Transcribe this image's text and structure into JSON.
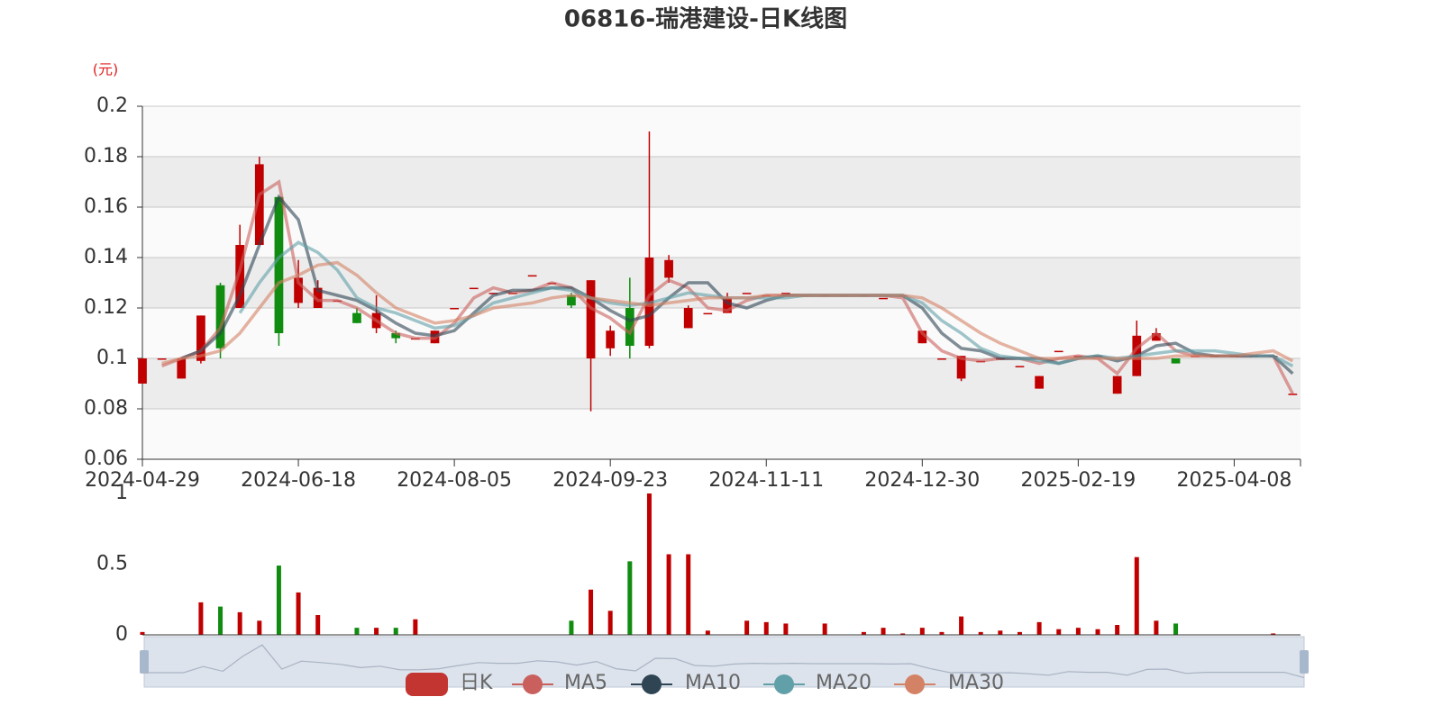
{
  "chart_data": {
    "type": "candlestick",
    "title": "06816-瑞港建设-日K线图",
    "yname": "(元)",
    "categories": [
      "2024-04-29",
      null,
      null,
      null,
      null,
      null,
      null,
      null,
      "2024-06-18",
      null,
      null,
      null,
      null,
      null,
      null,
      null,
      "2024-08-05",
      null,
      null,
      null,
      null,
      null,
      null,
      null,
      "2024-09-23",
      null,
      null,
      null,
      null,
      null,
      null,
      null,
      "2024-11-11",
      null,
      null,
      null,
      null,
      null,
      null,
      null,
      "2024-12-30",
      null,
      null,
      null,
      null,
      null,
      null,
      null,
      "2025-02-19",
      null,
      null,
      null,
      null,
      null,
      null,
      null,
      "2025-04-08",
      null,
      null,
      null
    ],
    "ylim": [
      0.06,
      0.2
    ],
    "yticks": [
      0.06,
      0.08,
      0.1,
      0.12,
      0.14,
      0.16,
      0.18,
      0.2
    ],
    "up_color": "#c00000",
    "down_color": "#108c10",
    "candles": {
      "name": "日K",
      "color": "#c23531",
      "values": [
        [
          0.09,
          0.1,
          0.09,
          0.1
        ],
        [
          0.1,
          0.1,
          0.1,
          0.1
        ],
        [
          0.092,
          0.1,
          0.092,
          0.1
        ],
        [
          0.099,
          0.117,
          0.098,
          0.117
        ],
        [
          0.129,
          0.104,
          0.1,
          0.13
        ],
        [
          0.12,
          0.145,
          0.12,
          0.153
        ],
        [
          0.145,
          0.177,
          0.145,
          0.18
        ],
        [
          0.164,
          0.11,
          0.105,
          0.164
        ],
        [
          0.122,
          0.132,
          0.12,
          0.139
        ],
        [
          0.12,
          0.128,
          0.12,
          0.131
        ],
        [
          0.123,
          0.123,
          0.123,
          0.123
        ],
        [
          0.118,
          0.114,
          0.114,
          0.12
        ],
        [
          0.112,
          0.118,
          0.11,
          0.125
        ],
        [
          0.11,
          0.108,
          0.106,
          0.111
        ],
        [
          0.108,
          0.108,
          0.108,
          0.108
        ],
        [
          0.106,
          0.111,
          0.106,
          0.111
        ],
        [
          0.12,
          0.12,
          0.12,
          0.12
        ],
        [
          0.128,
          0.128,
          0.128,
          0.128
        ],
        [
          0.126,
          0.126,
          0.126,
          0.126
        ],
        [
          0.126,
          0.126,
          0.126,
          0.126
        ],
        [
          0.133,
          0.133,
          0.133,
          0.133
        ],
        [
          0.13,
          0.13,
          0.13,
          0.13
        ],
        [
          0.125,
          0.121,
          0.12,
          0.126
        ],
        [
          0.1,
          0.131,
          0.079,
          0.131
        ],
        [
          0.104,
          0.111,
          0.101,
          0.113
        ],
        [
          0.12,
          0.105,
          0.1,
          0.132
        ],
        [
          0.105,
          0.14,
          0.104,
          0.19
        ],
        [
          0.132,
          0.139,
          0.13,
          0.141
        ],
        [
          0.112,
          0.12,
          0.112,
          0.121
        ],
        [
          0.118,
          0.118,
          0.118,
          0.118
        ],
        [
          0.118,
          0.124,
          0.118,
          0.126
        ],
        [
          0.126,
          0.126,
          0.126,
          0.126
        ],
        [
          0.125,
          0.125,
          0.125,
          0.125
        ],
        [
          0.126,
          0.126,
          0.126,
          0.126
        ],
        [
          0.125,
          0.125,
          0.125,
          0.125
        ],
        [
          0.125,
          0.125,
          0.125,
          0.125
        ],
        [
          0.125,
          0.125,
          0.125,
          0.125
        ],
        [
          0.125,
          0.125,
          0.125,
          0.125
        ],
        [
          0.124,
          0.124,
          0.124,
          0.124
        ],
        [
          0.125,
          0.125,
          0.125,
          0.125
        ],
        [
          0.106,
          0.111,
          0.106,
          0.111
        ],
        [
          0.1,
          0.1,
          0.1,
          0.1
        ],
        [
          0.092,
          0.101,
          0.091,
          0.101
        ],
        [
          0.099,
          0.099,
          0.099,
          0.099
        ],
        [
          0.1,
          0.1,
          0.1,
          0.1
        ],
        [
          0.097,
          0.097,
          0.097,
          0.097
        ],
        [
          0.088,
          0.093,
          0.088,
          0.093
        ],
        [
          0.103,
          0.103,
          0.103,
          0.103
        ],
        [
          0.101,
          0.101,
          0.101,
          0.101
        ],
        [
          0.101,
          0.101,
          0.101,
          0.101
        ],
        [
          0.086,
          0.093,
          0.086,
          0.093
        ],
        [
          0.093,
          0.109,
          0.093,
          0.115
        ],
        [
          0.107,
          0.11,
          0.107,
          0.112
        ],
        [
          0.1,
          0.098,
          0.098,
          0.1
        ],
        [
          0.101,
          0.101,
          0.101,
          0.101
        ],
        [
          0.101,
          0.101,
          0.101,
          0.101
        ],
        [
          0.101,
          0.101,
          0.101,
          0.101
        ],
        [
          0.101,
          0.101,
          0.101,
          0.101
        ],
        [
          0.101,
          0.101,
          0.101,
          0.101
        ],
        [
          0.086,
          0.086,
          0.086,
          0.086
        ]
      ]
    },
    "series": [
      {
        "name": "MA5",
        "color": "#c9605e",
        "values": [
          null,
          0.097,
          0.1,
          0.103,
          0.112,
          0.135,
          0.165,
          0.17,
          0.13,
          0.123,
          0.123,
          0.12,
          0.115,
          0.11,
          0.108,
          0.108,
          0.114,
          0.124,
          0.128,
          0.126,
          0.127,
          0.13,
          0.128,
          0.12,
          0.116,
          0.11,
          0.125,
          0.131,
          0.128,
          0.12,
          0.119,
          0.123,
          0.125,
          0.125,
          0.125,
          0.125,
          0.125,
          0.125,
          0.125,
          0.124,
          0.11,
          0.103,
          0.1,
          0.099,
          0.1,
          0.1,
          0.098,
          0.1,
          0.101,
          0.1,
          0.094,
          0.104,
          0.11,
          0.103,
          0.101,
          0.101,
          0.101,
          0.101,
          0.101,
          0.086
        ]
      },
      {
        "name": "MA10",
        "color": "#2f4554",
        "values": [
          null,
          null,
          0.1,
          0.103,
          0.11,
          0.125,
          0.145,
          0.164,
          0.155,
          0.127,
          0.125,
          0.123,
          0.119,
          0.114,
          0.11,
          0.109,
          0.111,
          0.118,
          0.125,
          0.127,
          0.127,
          0.128,
          0.128,
          0.124,
          0.119,
          0.115,
          0.117,
          0.124,
          0.13,
          0.13,
          0.122,
          0.12,
          0.123,
          0.125,
          0.125,
          0.125,
          0.125,
          0.125,
          0.125,
          0.125,
          0.12,
          0.11,
          0.104,
          0.103,
          0.1,
          0.1,
          0.1,
          0.098,
          0.1,
          0.101,
          0.099,
          0.101,
          0.105,
          0.106,
          0.102,
          0.101,
          0.101,
          0.101,
          0.101,
          0.094
        ]
      },
      {
        "name": "MA20",
        "color": "#61a0a8",
        "values": [
          null,
          null,
          null,
          null,
          null,
          0.118,
          0.13,
          0.14,
          0.146,
          0.142,
          0.135,
          0.124,
          0.12,
          0.118,
          0.115,
          0.112,
          0.113,
          0.117,
          0.122,
          0.124,
          0.126,
          0.128,
          0.127,
          0.124,
          0.122,
          0.121,
          0.122,
          0.124,
          0.126,
          0.125,
          0.124,
          0.124,
          0.124,
          0.124,
          0.125,
          0.125,
          0.125,
          0.125,
          0.125,
          0.125,
          0.122,
          0.115,
          0.11,
          0.104,
          0.101,
          0.1,
          0.099,
          0.098,
          0.1,
          0.101,
          0.1,
          0.101,
          0.102,
          0.103,
          0.103,
          0.103,
          0.102,
          0.101,
          0.101,
          0.097
        ]
      },
      {
        "name": "MA30",
        "color": "#d48265",
        "values": [
          null,
          0.098,
          0.1,
          0.101,
          0.103,
          0.11,
          0.12,
          0.13,
          0.133,
          0.137,
          0.138,
          0.133,
          0.126,
          0.12,
          0.117,
          0.114,
          0.115,
          0.117,
          0.12,
          0.121,
          0.122,
          0.124,
          0.125,
          0.124,
          0.123,
          0.122,
          0.121,
          0.122,
          0.123,
          0.124,
          0.124,
          0.124,
          0.125,
          0.125,
          0.125,
          0.125,
          0.125,
          0.125,
          0.125,
          0.125,
          0.124,
          0.12,
          0.115,
          0.11,
          0.106,
          0.103,
          0.1,
          0.1,
          0.1,
          0.1,
          0.1,
          0.1,
          0.1,
          0.101,
          0.101,
          0.101,
          0.101,
          0.102,
          0.103,
          0.099
        ]
      }
    ],
    "volume": {
      "ylim": [
        0,
        1
      ],
      "yticks": [
        0,
        0.5,
        1
      ],
      "values": [
        0.02,
        0,
        0,
        0.23,
        0.2,
        0.16,
        0.1,
        0.49,
        0.3,
        0.14,
        0,
        0.05,
        0.05,
        0.05,
        0.11,
        0,
        0,
        0,
        0,
        0,
        0,
        0,
        0.1,
        0.32,
        0.17,
        0.52,
        1,
        0.57,
        0.57,
        0.03,
        0,
        0.1,
        0.09,
        0.08,
        0,
        0.08,
        0,
        0.02,
        0.05,
        0.01,
        0.05,
        0.02,
        0.13,
        0.02,
        0.03,
        0.02,
        0.09,
        0.04,
        0.05,
        0.04,
        0.07,
        0.55,
        0.1,
        0.08,
        0,
        0,
        0,
        0,
        0.01,
        0
      ]
    }
  }
}
